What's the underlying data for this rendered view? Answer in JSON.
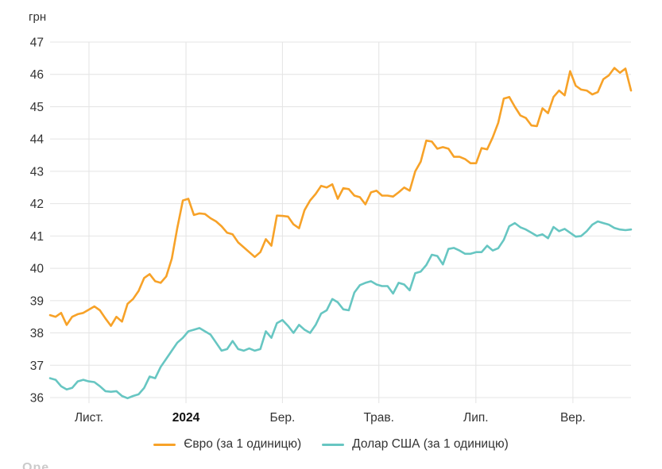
{
  "unit_label": "грн",
  "watermark": "Ope",
  "colors": {
    "euro": "#F7A228",
    "usd": "#67C6C2",
    "grid": "#E4E4E4",
    "tick_text": "#333333",
    "bold_tick_text": "#111111"
  },
  "chart_data": {
    "type": "line",
    "title": "",
    "ylabel": "грн",
    "xlabel": "",
    "ylim": [
      36,
      47
    ],
    "grid": true,
    "legend_position": "bottom-center",
    "y_ticks": [
      47,
      46,
      45,
      44,
      43,
      42,
      41,
      40,
      39,
      38,
      37,
      36
    ],
    "x_ticks": [
      {
        "label": "Лист.",
        "pos": 0.067,
        "bold": false
      },
      {
        "label": "2024",
        "pos": 0.234,
        "bold": true
      },
      {
        "label": "Бер.",
        "pos": 0.4,
        "bold": false
      },
      {
        "label": "Трав.",
        "pos": 0.566,
        "bold": false
      },
      {
        "label": "Лип.",
        "pos": 0.733,
        "bold": false
      },
      {
        "label": "Вер.",
        "pos": 0.9,
        "bold": false
      }
    ],
    "x_period": "Oct 2023 – Oct 2024, evenly spaced samples",
    "series": [
      {
        "id": "euro",
        "name": "Євро (за 1 одиницю)",
        "color": "#F7A228",
        "values": [
          38.55,
          38.5,
          38.62,
          38.25,
          38.5,
          38.58,
          38.62,
          38.72,
          38.82,
          38.7,
          38.45,
          38.22,
          38.5,
          38.35,
          38.9,
          39.05,
          39.3,
          39.7,
          39.82,
          39.6,
          39.55,
          39.75,
          40.3,
          41.25,
          42.1,
          42.15,
          41.65,
          41.7,
          41.68,
          41.55,
          41.45,
          41.3,
          41.1,
          41.05,
          40.8,
          40.65,
          40.5,
          40.35,
          40.5,
          40.9,
          40.7,
          41.63,
          41.62,
          41.6,
          41.36,
          41.24,
          41.8,
          42.1,
          42.3,
          42.55,
          42.5,
          42.6,
          42.15,
          42.48,
          42.45,
          42.25,
          42.2,
          41.98,
          42.35,
          42.4,
          42.25,
          42.25,
          42.22,
          42.35,
          42.5,
          42.4,
          43.0,
          43.3,
          43.95,
          43.92,
          43.7,
          43.75,
          43.7,
          43.45,
          43.45,
          43.38,
          43.25,
          43.25,
          43.72,
          43.68,
          44.05,
          44.5,
          45.25,
          45.3,
          45.0,
          44.73,
          44.65,
          44.42,
          44.4,
          44.95,
          44.8,
          45.3,
          45.5,
          45.35,
          46.1,
          45.65,
          45.53,
          45.5,
          45.38,
          45.45,
          45.85,
          45.97,
          46.2,
          46.05,
          46.18,
          45.5
        ]
      },
      {
        "id": "usd",
        "name": "Долар США (за 1 одиницю)",
        "color": "#67C6C2",
        "values": [
          36.6,
          36.55,
          36.35,
          36.25,
          36.3,
          36.5,
          36.55,
          36.5,
          36.48,
          36.35,
          36.2,
          36.18,
          36.2,
          36.05,
          35.98,
          36.05,
          36.1,
          36.3,
          36.65,
          36.6,
          36.95,
          37.2,
          37.45,
          37.7,
          37.85,
          38.05,
          38.1,
          38.15,
          38.05,
          37.95,
          37.7,
          37.45,
          37.5,
          37.75,
          37.5,
          37.45,
          37.52,
          37.45,
          37.5,
          38.05,
          37.85,
          38.3,
          38.4,
          38.22,
          38.0,
          38.25,
          38.1,
          38.0,
          38.25,
          38.6,
          38.7,
          39.05,
          38.95,
          38.73,
          38.7,
          39.25,
          39.48,
          39.55,
          39.6,
          39.5,
          39.45,
          39.45,
          39.22,
          39.55,
          39.5,
          39.32,
          39.85,
          39.9,
          40.1,
          40.42,
          40.38,
          40.12,
          40.6,
          40.63,
          40.55,
          40.45,
          40.45,
          40.5,
          40.5,
          40.7,
          40.55,
          40.62,
          40.88,
          41.3,
          41.4,
          41.27,
          41.2,
          41.1,
          41.0,
          41.05,
          40.93,
          41.28,
          41.15,
          41.22,
          41.1,
          40.98,
          41.0,
          41.15,
          41.35,
          41.45,
          41.4,
          41.35,
          41.25,
          41.2,
          41.18,
          41.2
        ]
      }
    ]
  }
}
